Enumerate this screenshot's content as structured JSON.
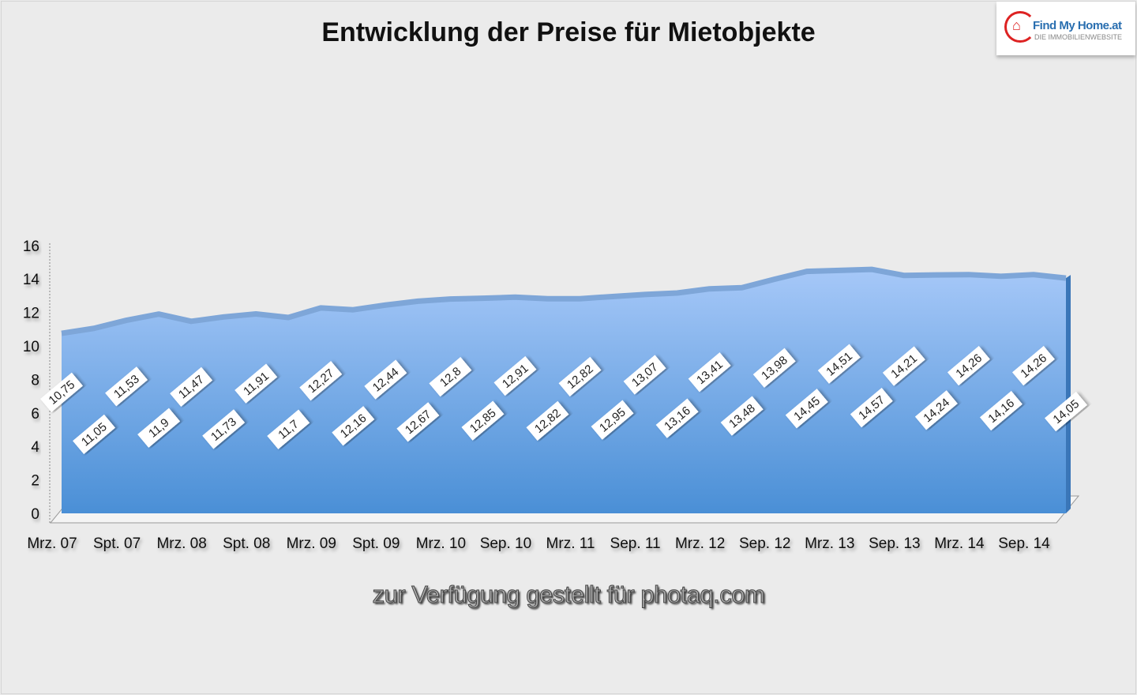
{
  "chart_data": {
    "type": "area",
    "title": "Entwicklung der Preise für Mietobjekte",
    "xlabel": "",
    "ylabel": "",
    "ylim": [
      0,
      16
    ],
    "yticks": [
      0,
      2,
      4,
      6,
      8,
      10,
      12,
      14,
      16
    ],
    "xtick_labels": [
      "Mrz. 07",
      "Spt. 07",
      "Mrz. 08",
      "Spt. 08",
      "Mrz. 09",
      "Spt. 09",
      "Mrz. 10",
      "Sep. 10",
      "Mrz. 11",
      "Sep. 11",
      "Mrz. 12",
      "Sep. 12",
      "Mrz. 13",
      "Sep. 13",
      "Mrz. 14",
      "Sep. 14"
    ],
    "values": [
      10.75,
      11.05,
      11.53,
      11.9,
      11.47,
      11.73,
      11.91,
      11.7,
      12.27,
      12.16,
      12.44,
      12.67,
      12.8,
      12.85,
      12.91,
      12.82,
      12.82,
      12.95,
      13.07,
      13.16,
      13.41,
      13.48,
      13.98,
      14.45,
      14.51,
      14.57,
      14.21,
      14.24,
      14.26,
      14.16,
      14.26,
      14.05
    ],
    "data_labels": [
      "10,75",
      "11,05",
      "11,53",
      "11,9",
      "11,47",
      "11,73",
      "11,91",
      "11,7",
      "12,27",
      "12,16",
      "12,44",
      "12,67",
      "12,8",
      "12,85",
      "12,91",
      "12,82",
      "12,82",
      "12,95",
      "13,07",
      "13,16",
      "13,41",
      "13,48",
      "13,98",
      "14,45",
      "14,51",
      "14,57",
      "14,21",
      "14,24",
      "14,26",
      "14,16",
      "14,26",
      "14,05"
    ],
    "colors": {
      "area_top": "#a6c8f8",
      "area_bottom": "#4a8fd6",
      "edge": "#7ea6d8"
    },
    "grid": false,
    "legend": "none"
  },
  "logo": {
    "name": "Find My Home.at",
    "tagline": "DIE IMMOBILIENWEBSITE"
  },
  "watermark": "zur Verfügung gestellt für photaq.com"
}
